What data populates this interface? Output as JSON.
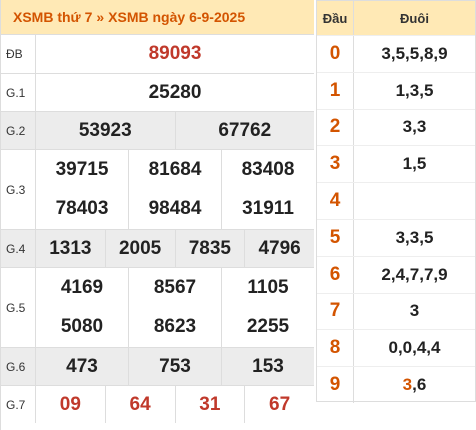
{
  "header": {
    "link1": "XSMB thứ 7",
    "separator": "»",
    "link2": "XSMB ngày 6-9-2025"
  },
  "prizes": [
    {
      "label": "ĐB",
      "gray": false,
      "lines": [
        [
          "89093"
        ]
      ],
      "red": true
    },
    {
      "label": "G.1",
      "gray": false,
      "lines": [
        [
          "25280"
        ]
      ]
    },
    {
      "label": "G.2",
      "gray": true,
      "lines": [
        [
          "53923",
          "67762"
        ]
      ]
    },
    {
      "label": "G.3",
      "gray": false,
      "lines": [
        [
          "39715",
          "81684",
          "83408"
        ],
        [
          "78403",
          "98484",
          "31911"
        ]
      ]
    },
    {
      "label": "G.4",
      "gray": true,
      "lines": [
        [
          "1313",
          "2005",
          "7835",
          "4796"
        ]
      ]
    },
    {
      "label": "G.5",
      "gray": false,
      "lines": [
        [
          "4169",
          "8567",
          "1105"
        ],
        [
          "5080",
          "8623",
          "2255"
        ]
      ]
    },
    {
      "label": "G.6",
      "gray": true,
      "lines": [
        [
          "473",
          "753",
          "153"
        ]
      ]
    },
    {
      "label": "G.7",
      "gray": false,
      "lines": [
        [
          "09",
          "64",
          "31",
          "67"
        ]
      ],
      "red": true
    }
  ],
  "loto": {
    "col_head": "Đầu",
    "col_tail": "Đuôi",
    "rows": [
      {
        "head": "0",
        "tail": "3,5,5,8,9"
      },
      {
        "head": "1",
        "tail": "1,3,5"
      },
      {
        "head": "2",
        "tail": "3,3"
      },
      {
        "head": "3",
        "tail": "1,5"
      },
      {
        "head": "4",
        "tail": ""
      },
      {
        "head": "5",
        "tail": "3,3,5"
      },
      {
        "head": "6",
        "tail": "2,4,7,7,9"
      },
      {
        "head": "7",
        "tail": "3"
      },
      {
        "head": "8",
        "tail": "0,0,4,4"
      },
      {
        "head": "9",
        "tail_parts": [
          {
            "text": "3",
            "special": true
          },
          {
            "text": ",6",
            "special": false
          }
        ]
      }
    ]
  }
}
